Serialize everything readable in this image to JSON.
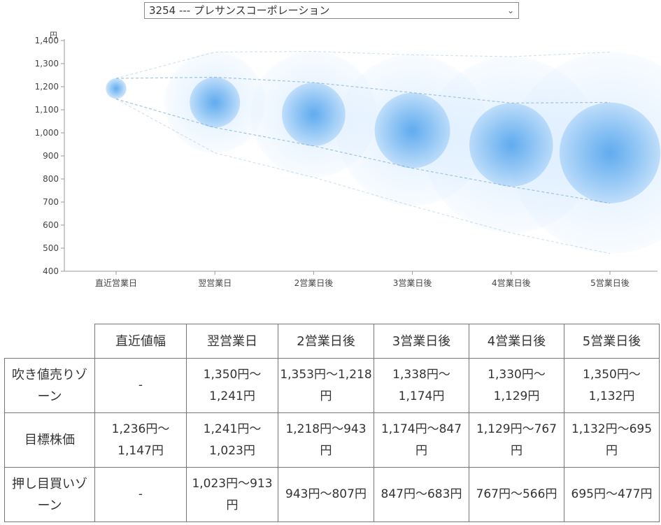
{
  "selector": {
    "value": "3254 --- プレサンスコーポレーション",
    "chevron_icon": "chevron-down-icon"
  },
  "chart_data": {
    "type": "bubble",
    "y_unit": "円",
    "ylim": [
      400,
      1400
    ],
    "yticks": [
      "400",
      "500",
      "600",
      "700",
      "800",
      "900",
      "1,000",
      "1,100",
      "1,200",
      "1,300",
      "1,400"
    ],
    "categories": [
      "直近営業日",
      "翌営業日",
      "2営業日後",
      "3営業日後",
      "4営業日後",
      "5営業日後"
    ],
    "center": [
      1192,
      1132,
      1080,
      1010,
      948,
      913
    ],
    "upper": [
      1236,
      1241,
      1218,
      1174,
      1129,
      1132
    ],
    "lower": [
      1147,
      1023,
      943,
      847,
      767,
      695
    ],
    "outer_upper": [
      1236,
      1350,
      1353,
      1338,
      1330,
      1350
    ],
    "outer_lower": [
      1147,
      913,
      807,
      683,
      566,
      477
    ],
    "colors": {
      "bubble": "#5aa8ee",
      "halo": "#d2e8ff",
      "dashed": "#7aaed6",
      "axis": "#999999"
    },
    "grid": false
  },
  "table": {
    "headers": [
      "",
      "直近値幅",
      "翌営業日",
      "2営業日後",
      "3営業日後",
      "4営業日後",
      "5営業日後"
    ],
    "rows": [
      {
        "label": "吹き値売りゾーン",
        "cells": [
          "-",
          "1,350円～1,241円",
          "1,353円～1,218円",
          "1,338円～1,174円",
          "1,330円～1,129円",
          "1,350円～1,132円"
        ]
      },
      {
        "label": "目標株価",
        "cells": [
          "1,236円～1,147円",
          "1,241円～1,023円",
          "1,218円～943円",
          "1,174円～847円",
          "1,129円～767円",
          "1,132円～695円"
        ]
      },
      {
        "label": "押し目買いゾーン",
        "cells": [
          "-",
          "1,023円～913円",
          "943円～807円",
          "847円～683円",
          "767円～566円",
          "695円～477円"
        ]
      }
    ]
  }
}
